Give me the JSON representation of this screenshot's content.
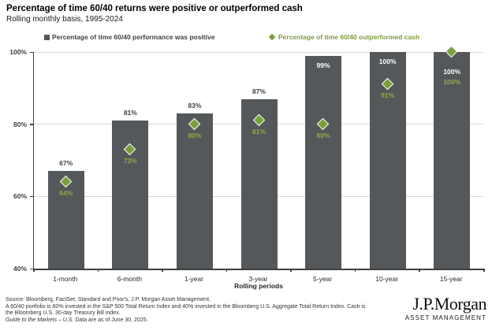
{
  "header": {
    "title": "Percentage of time 60/40 returns were positive or outperformed cash",
    "subtitle": "Rolling monthly basis, 1995-2024"
  },
  "legend": {
    "bar_series_label": "Percentage of time 60/40 performance was positive",
    "diamond_series_label": "Percentage of time 60/40 outperformed cash"
  },
  "chart_data": {
    "type": "bar",
    "title": "Percentage of time 60/40 returns were positive or outperformed cash",
    "subtitle": "Rolling monthly basis, 1995-2024",
    "xlabel": "Rolling periods",
    "ylabel": "",
    "ylim": [
      40,
      100
    ],
    "grid": "horizontal",
    "legend_position": "top",
    "y_ticks": [
      {
        "label": "100%",
        "value": 100
      },
      {
        "label": "80%",
        "value": 80
      },
      {
        "label": "60%",
        "value": 60
      },
      {
        "label": "40%",
        "value": 40
      }
    ],
    "gridline_values": [
      100,
      80,
      60
    ],
    "categories": [
      "1-month",
      "6-month",
      "1-year",
      "3-year",
      "5-year",
      "10-year",
      "15-year"
    ],
    "series": [
      {
        "name": "Percentage of time 60/40 performance was positive",
        "type": "bar",
        "values": [
          67,
          81,
          83,
          87,
          99,
          100,
          100
        ]
      },
      {
        "name": "Percentage of time 60/40 outperformed cash",
        "type": "diamond-marker",
        "values": [
          64,
          73,
          80,
          81,
          80,
          91,
          100
        ]
      }
    ],
    "points": [
      {
        "category": "1-month",
        "bar": 67,
        "bar_label": "67%",
        "bar_label_pos": "above",
        "diamond": 64,
        "diamond_label": "64%",
        "diamond_label_pos": "below"
      },
      {
        "category": "6-month",
        "bar": 81,
        "bar_label": "81%",
        "bar_label_pos": "above",
        "diamond": 73,
        "diamond_label": "73%",
        "diamond_label_pos": "below"
      },
      {
        "category": "1-year",
        "bar": 83,
        "bar_label": "83%",
        "bar_label_pos": "above",
        "diamond": 80,
        "diamond_label": "80%",
        "diamond_label_pos": "below"
      },
      {
        "category": "3-year",
        "bar": 87,
        "bar_label": "87%",
        "bar_label_pos": "above",
        "diamond": 81,
        "diamond_label": "81%",
        "diamond_label_pos": "below"
      },
      {
        "category": "5-year",
        "bar": 99,
        "bar_label": "99%",
        "bar_label_pos": "inside",
        "diamond": 80,
        "diamond_label": "80%",
        "diamond_label_pos": "below"
      },
      {
        "category": "10-year",
        "bar": 100,
        "bar_label": "100%",
        "bar_label_pos": "inside",
        "diamond": 91,
        "diamond_label": "91%",
        "diamond_label_pos": "below"
      },
      {
        "category": "15-year",
        "bar": 100,
        "bar_label": "100%",
        "bar_label_pos": "inside_low",
        "diamond": 100,
        "diamond_label": "100%",
        "diamond_label_pos": "stacked"
      }
    ]
  },
  "colors": {
    "bar": "#54585A",
    "diamond_fill": "#78A03C",
    "green_text": "#7E9C3D",
    "green_text_on_bar": "#8CAE45",
    "bar_label_text": "#404040",
    "inside_label_text": "#FFFFFF",
    "gridline": "#D9D9D9",
    "axis": "#3F3F3F"
  },
  "footer": {
    "line1": "Source: Bloomberg, FactSet, Standard and Poor's, J.P. Morgan Asset Management.",
    "line2": "A 60/40 portfolio is 60% invested in the S&P 500 Total Return Index and 40% invested in the Bloomberg U.S. Aggregate Total Return Index. Cash is",
    "line3": "the Bloomberg U.S. 30-day Treasury Bill index.",
    "line4_italic": "Guide to the Markets – U.S.",
    "line4_rest": " Data are as of June 30, 2025."
  },
  "logo": {
    "name": "J.P.Morgan",
    "subtitle": "ASSET MANAGEMENT"
  }
}
